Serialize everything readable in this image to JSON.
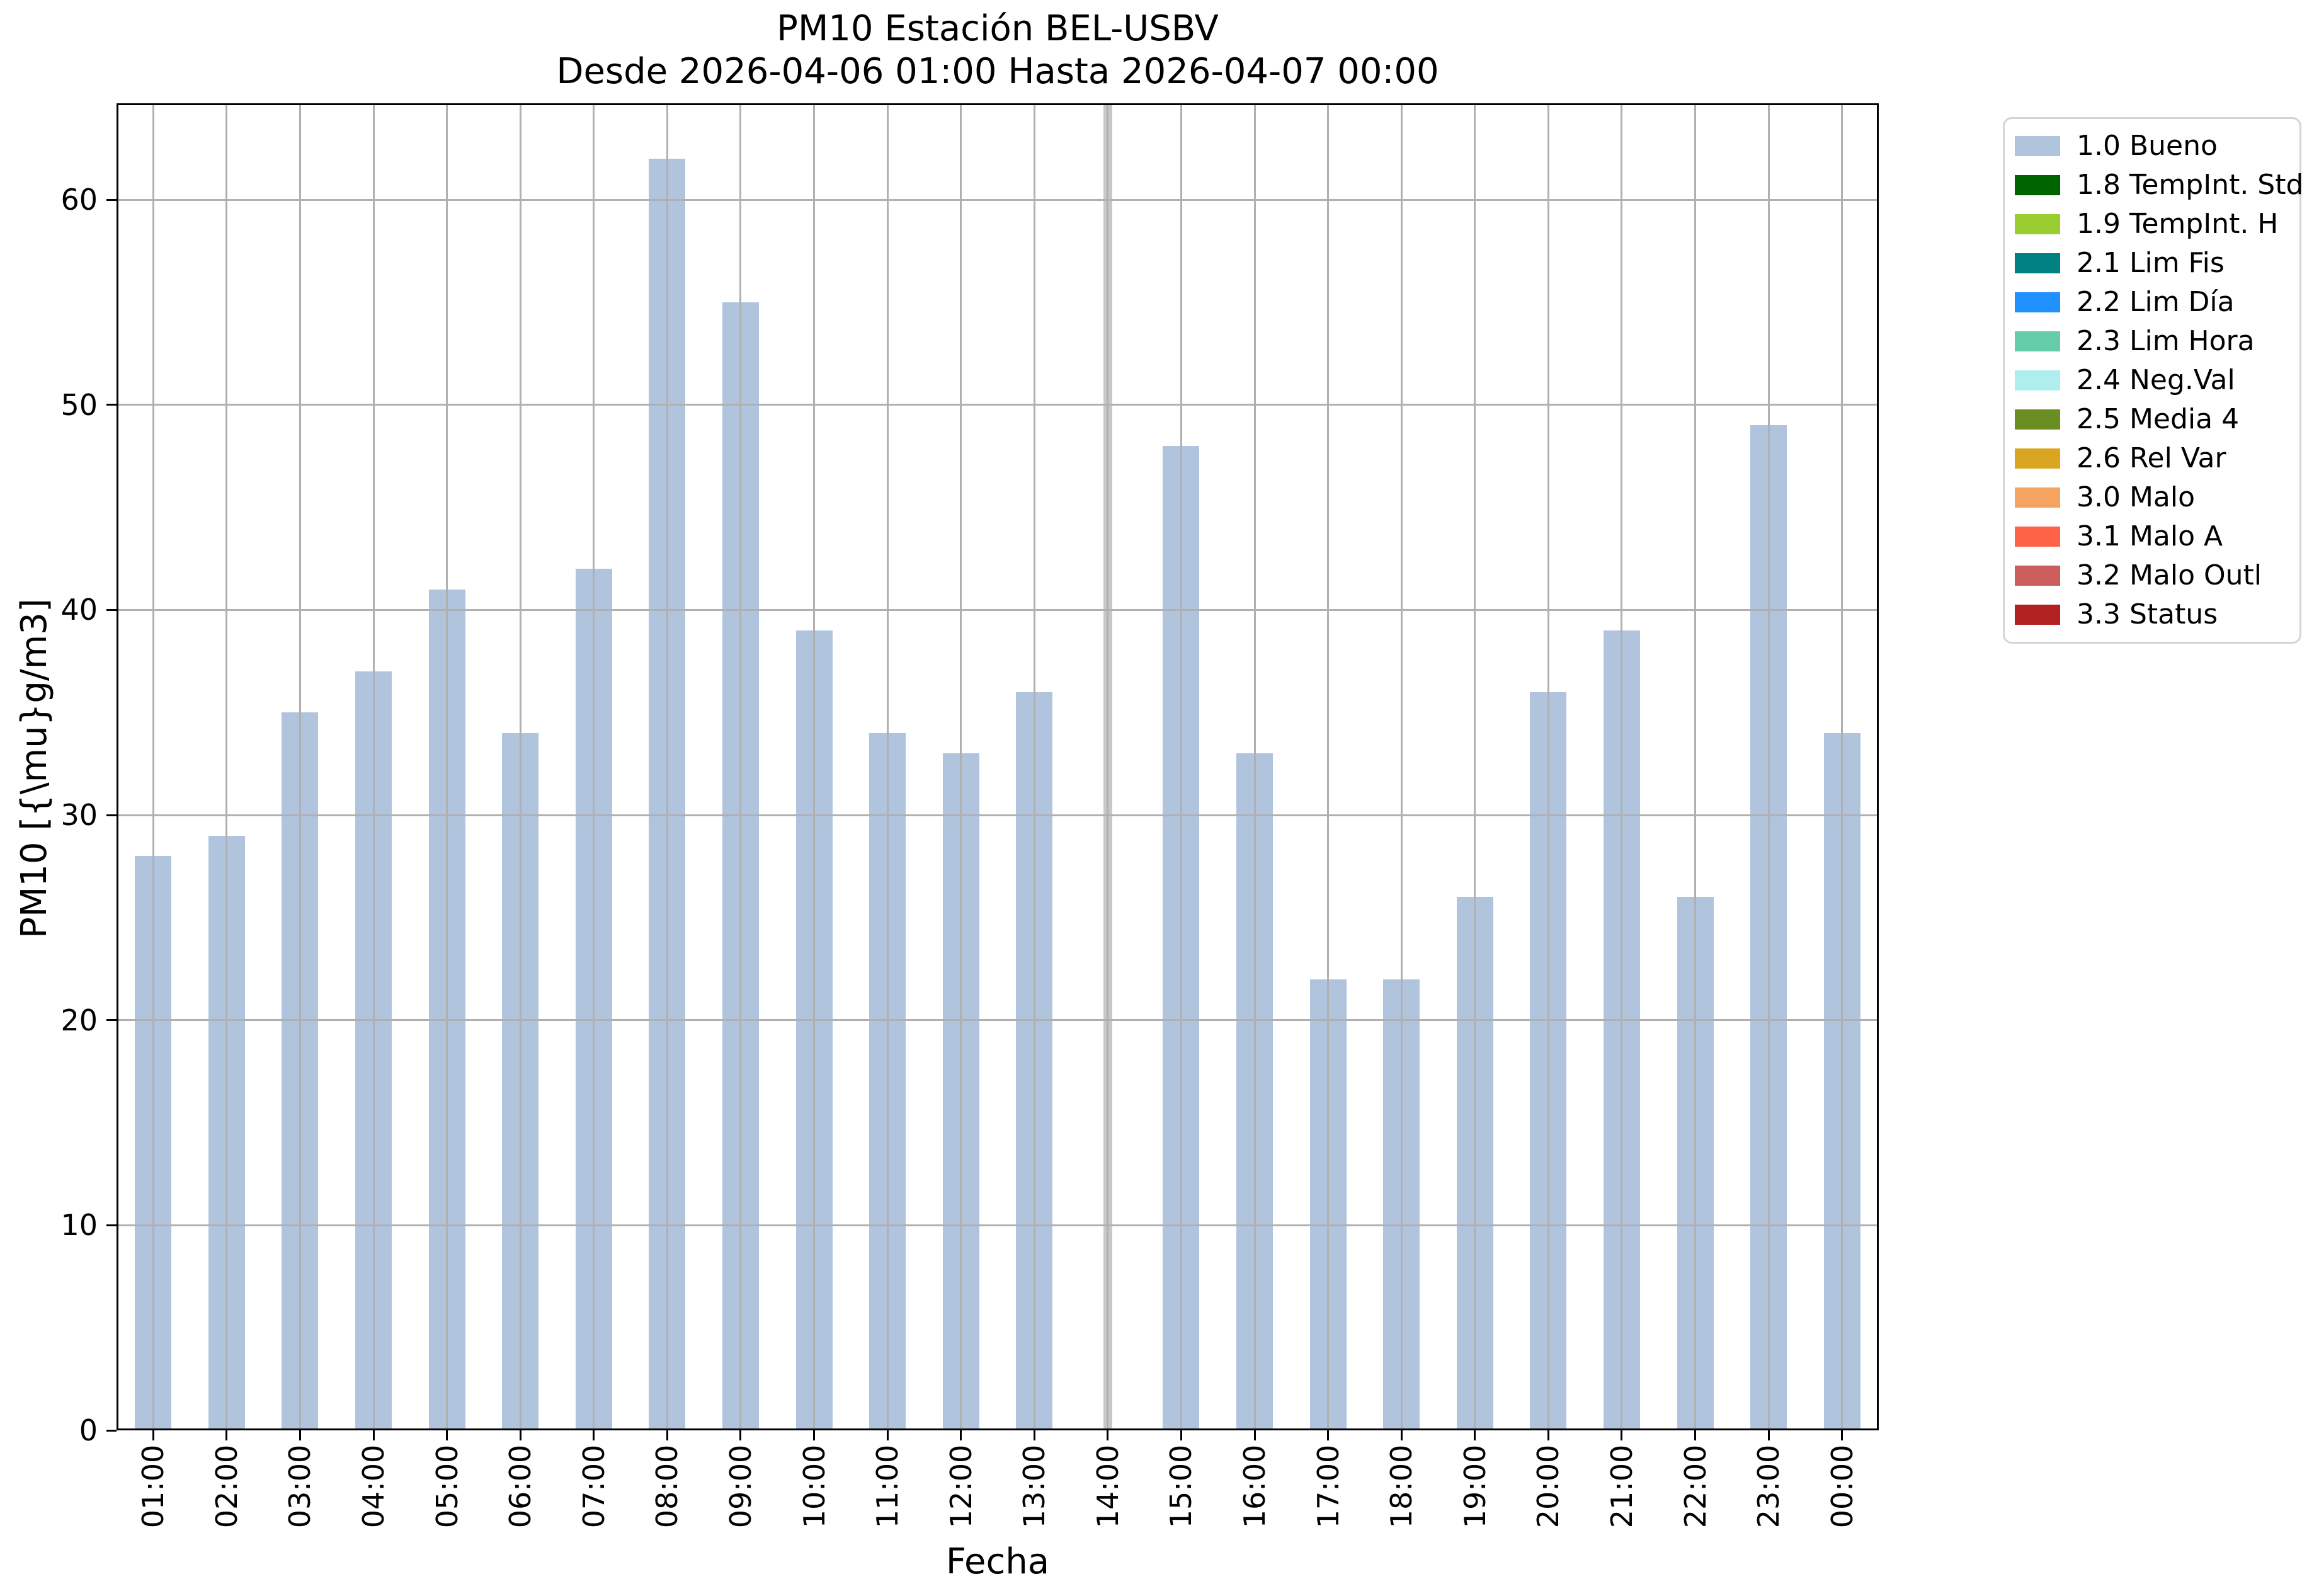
{
  "chart_data": {
    "type": "bar",
    "title": "PM10 Estación BEL-USBV",
    "subtitle": "Desde 2026-04-06 01:00 Hasta 2026-04-07 00:00",
    "xlabel": "Fecha",
    "ylabel": "PM10 [{\\mu}g/m3]",
    "categories": [
      "01:00",
      "02:00",
      "03:00",
      "04:00",
      "05:00",
      "06:00",
      "07:00",
      "08:00",
      "09:00",
      "10:00",
      "11:00",
      "12:00",
      "13:00",
      "14:00",
      "15:00",
      "16:00",
      "17:00",
      "18:00",
      "19:00",
      "20:00",
      "21:00",
      "22:00",
      "23:00",
      "00:00"
    ],
    "values": [
      28,
      29,
      35,
      37,
      41,
      34,
      42,
      62,
      55,
      39,
      34,
      33,
      36,
      null,
      48,
      33,
      22,
      22,
      26,
      36,
      39,
      26,
      49,
      34
    ],
    "missing_categories": [
      "14:00"
    ],
    "yticks": [
      0,
      10,
      20,
      30,
      40,
      50,
      60
    ],
    "ylim": [
      0,
      64.7
    ],
    "grid": true,
    "grid_above_bars": true,
    "bar_color": "#b0c4de",
    "grid_color": "#b0b0b0",
    "missing_band_color": "#c8c8c8",
    "legend_position": "outside upper right",
    "legend": [
      {
        "label": "1.0 Bueno",
        "color": "#b0c4de"
      },
      {
        "label": "1.8 TempInt. Std",
        "color": "#006400"
      },
      {
        "label": "1.9 TempInt. H",
        "color": "#9acd32"
      },
      {
        "label": "2.1 Lim Fis",
        "color": "#008080"
      },
      {
        "label": "2.2 Lim Día",
        "color": "#1e90ff"
      },
      {
        "label": "2.3 Lim Hora",
        "color": "#66cdaa"
      },
      {
        "label": "2.4 Neg.Val",
        "color": "#afeeee"
      },
      {
        "label": "2.5 Media 4",
        "color": "#6b8e23"
      },
      {
        "label": "2.6 Rel Var",
        "color": "#daa520"
      },
      {
        "label": "3.0 Malo",
        "color": "#f4a460"
      },
      {
        "label": "3.1 Malo A",
        "color": "#ff6347"
      },
      {
        "label": "3.2 Malo Outl",
        "color": "#cd5c5c"
      },
      {
        "label": "3.3 Status",
        "color": "#b22222"
      }
    ]
  }
}
